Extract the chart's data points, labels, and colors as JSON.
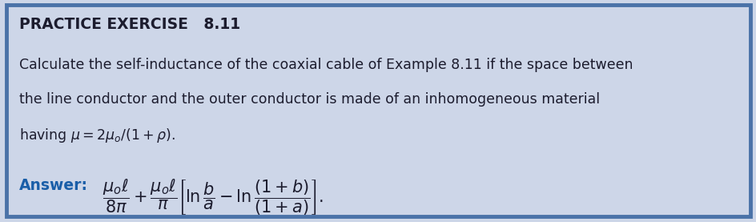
{
  "background_color": "#cdd6e8",
  "border_color": "#4a72a8",
  "title_text": "PRACTICE EXERCISE   8.11",
  "title_fontsize": 13.5,
  "body_text_line1": "Calculate the self-inductance of the coaxial cable of Example 8.11 if the space between",
  "body_text_line2": "the line conductor and the outer conductor is made of an inhomogeneous material",
  "body_text_line3": "having $\\mu = 2\\mu_o/(1 + \\rho)$.",
  "body_fontsize": 12.5,
  "answer_label": "Answer:",
  "answer_label_color": "#1a5ea8",
  "answer_label_fontsize": 13.5,
  "answer_formula": "$\\dfrac{\\mu_o\\ell}{8\\pi} + \\dfrac{\\mu_o\\ell}{\\pi}\\left[\\ln\\dfrac{b}{a} - \\ln\\dfrac{(1+b)}{(1+a)}\\right].$",
  "answer_formula_fontsize": 15,
  "text_color": "#1c1c2e",
  "border_width": 3.5
}
